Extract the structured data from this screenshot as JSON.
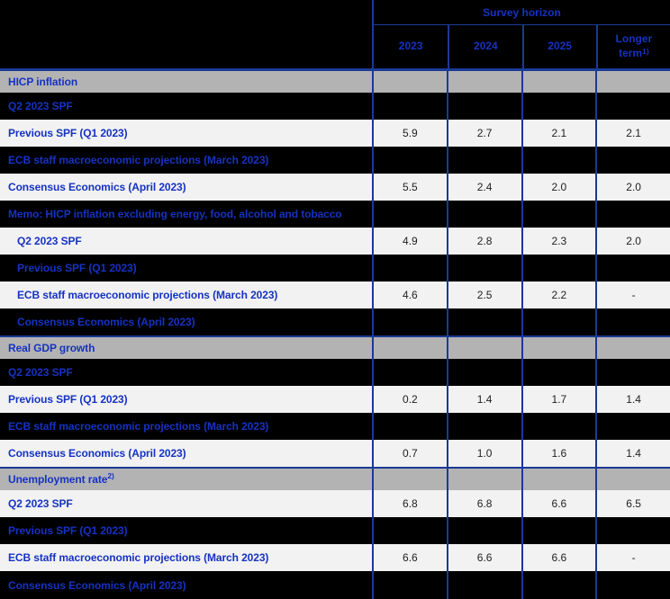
{
  "colors": {
    "accent_blue_text": "#1632c2",
    "table_border_blue": "#1b3a94",
    "section_row_gray": "#b3b3b3",
    "light_row_bg": "#f2f2f2",
    "dark_row_bg": "#000000",
    "value_text": "#1f1f1f"
  },
  "header": {
    "survey_horizon": "Survey horizon",
    "columns": [
      {
        "label": "2023"
      },
      {
        "label": "2024"
      },
      {
        "label": "2025"
      },
      {
        "label": "Longer term",
        "sup": "1)"
      }
    ]
  },
  "rows": [
    {
      "label": "HICP inflation",
      "type": "section",
      "indent": false,
      "values": [
        "",
        "",
        "",
        ""
      ]
    },
    {
      "label": "Q2 2023 SPF",
      "type": "dark",
      "indent": false,
      "values": [
        "",
        "",
        "",
        ""
      ]
    },
    {
      "label": "Previous SPF (Q1 2023)",
      "type": "light",
      "indent": false,
      "values": [
        "5.9",
        "2.7",
        "2.1",
        "2.1"
      ]
    },
    {
      "label": "ECB staff macroeconomic projections (March 2023)",
      "type": "dark",
      "indent": false,
      "values": [
        "",
        "",
        "",
        ""
      ]
    },
    {
      "label": "Consensus Economics (April 2023)",
      "type": "light",
      "indent": false,
      "values": [
        "5.5",
        "2.4",
        "2.0",
        "2.0"
      ]
    },
    {
      "label": "Memo: HICP inflation excluding energy, food, alcohol and tobacco",
      "type": "dark",
      "indent": false,
      "values": [
        "",
        "",
        "",
        ""
      ]
    },
    {
      "label": "Q2 2023 SPF",
      "type": "light",
      "indent": true,
      "values": [
        "4.9",
        "2.8",
        "2.3",
        "2.0"
      ]
    },
    {
      "label": "Previous SPF (Q1 2023)",
      "type": "dark",
      "indent": true,
      "values": [
        "",
        "",
        "",
        ""
      ]
    },
    {
      "label": "ECB staff macroeconomic projections (March 2023)",
      "type": "light",
      "indent": true,
      "values": [
        "4.6",
        "2.5",
        "2.2",
        "-"
      ]
    },
    {
      "label": "Consensus Economics (April 2023)",
      "type": "dark",
      "indent": true,
      "values": [
        "",
        "",
        "",
        ""
      ]
    },
    {
      "label": "Real GDP growth",
      "type": "section",
      "indent": false,
      "values": [
        "",
        "",
        "",
        ""
      ]
    },
    {
      "label": "Q2 2023 SPF",
      "type": "dark",
      "indent": false,
      "values": [
        "",
        "",
        "",
        ""
      ]
    },
    {
      "label": "Previous SPF (Q1 2023)",
      "type": "light",
      "indent": false,
      "values": [
        "0.2",
        "1.4",
        "1.7",
        "1.4"
      ]
    },
    {
      "label": "ECB staff macroeconomic projections (March 2023)",
      "type": "dark",
      "indent": false,
      "values": [
        "",
        "",
        "",
        ""
      ]
    },
    {
      "label": "Consensus Economics (April 2023)",
      "type": "light",
      "indent": false,
      "values": [
        "0.7",
        "1.0",
        "1.6",
        "1.4"
      ]
    },
    {
      "label": "Unemployment rate",
      "sup": "2)",
      "type": "section",
      "indent": false,
      "values": [
        "",
        "",
        "",
        ""
      ]
    },
    {
      "label": "Q2 2023 SPF",
      "type": "light",
      "indent": false,
      "values": [
        "6.8",
        "6.8",
        "6.6",
        "6.5"
      ]
    },
    {
      "label": "Previous SPF (Q1 2023)",
      "type": "dark",
      "indent": false,
      "values": [
        "",
        "",
        "",
        ""
      ]
    },
    {
      "label": "ECB staff macroeconomic projections (March 2023)",
      "type": "light",
      "indent": false,
      "values": [
        "6.6",
        "6.6",
        "6.6",
        "-"
      ]
    },
    {
      "label": "Consensus Economics (April 2023)",
      "type": "dark",
      "indent": false,
      "values": [
        "",
        "",
        "",
        ""
      ]
    }
  ]
}
